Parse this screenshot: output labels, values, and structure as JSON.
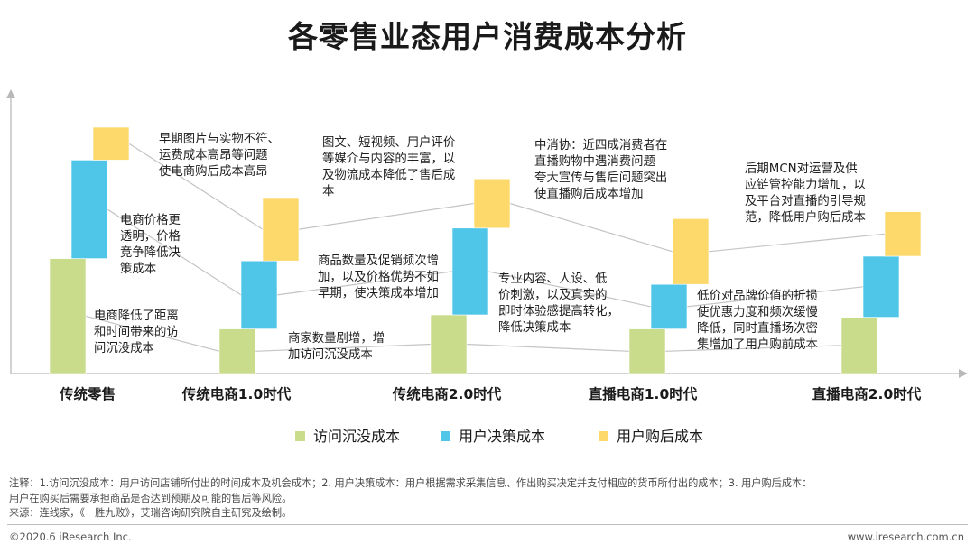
{
  "title": "各零售业态用户消费成本分析",
  "colors": {
    "visit": "#c8dc8c",
    "decision": "#4fc6e8",
    "after": "#fdd86b",
    "line": "#c4c4c4",
    "axis": "#b9b9b9"
  },
  "chart_data": {
    "type": "bar",
    "stacked": true,
    "categories": [
      "传统零售",
      "传统电商1.0时代",
      "传统电商2.0时代",
      "直播电商1.0时代",
      "直播电商2.0时代"
    ],
    "series": [
      {
        "name": "访问沉没成本",
        "values": [
          4.9,
          1.9,
          2.5,
          1.9,
          2.4
        ]
      },
      {
        "name": "用户决策成本",
        "values": [
          4.2,
          2.9,
          3.7,
          1.9,
          2.6
        ]
      },
      {
        "name": "用户购后成本",
        "values": [
          1.4,
          2.7,
          2.1,
          2.8,
          1.9
        ]
      }
    ],
    "grid": false,
    "legend": "bottom",
    "annotations": [
      [
        "早期图片与实物不符、",
        "运费成本高昂等问题",
        "使电商购后成本高昂"
      ],
      [
        "电商价格更",
        "透明，价格",
        "竞争降低决",
        "策成本"
      ],
      [
        "电商降低了距离",
        "和时间带来的访",
        "问沉没成本"
      ],
      [
        "图文、短视频、用户评价",
        "等媒介与内容的丰富，以",
        "及物流成本降低了售后成",
        "本"
      ],
      [
        "商品数量及促销频次增",
        "加，以及价格优势不如",
        "早期，使决策成本增加"
      ],
      [
        "商家数量剧增，增",
        "加访问沉没成本"
      ],
      [
        "中消协：近四成消费者在",
        "直播购物中遇消费问题",
        "夸大宣传与售后问题突出",
        "使直播购后成本增加"
      ],
      [
        "专业内容、人设、低",
        "价刺激，以及真实的",
        "即时体验感提高转化，",
        "降低决策成本"
      ],
      [
        "后期MCN对运营及供",
        "应链管控能力增加，以",
        "及平台对直播的引导规",
        "范，降低用户购后成本"
      ],
      [
        "低价对品牌价值的折损",
        "使优惠力度和频次缓慢",
        "降低，同时直播场次密",
        "集增加了用户购前成本"
      ]
    ]
  },
  "notes": {
    "line1": "注释：1.访问沉没成本：用户访问店铺所付出的时间成本及机会成本；2. 用户决策成本：用户根据需求采集信息、作出购买决定并支付相应的货币所付出的成本；3. 用户购后成本：",
    "line2": "用户在购买后需要承担商品是否达到预期及可能的售后等风险。",
    "line3": "来源：连线家，《一胜九败》，艾瑞咨询研究院自主研究及绘制。"
  },
  "footer": {
    "copyright": "©2020.6 iResearch Inc.",
    "website": "www.iresearch.com.cn"
  }
}
